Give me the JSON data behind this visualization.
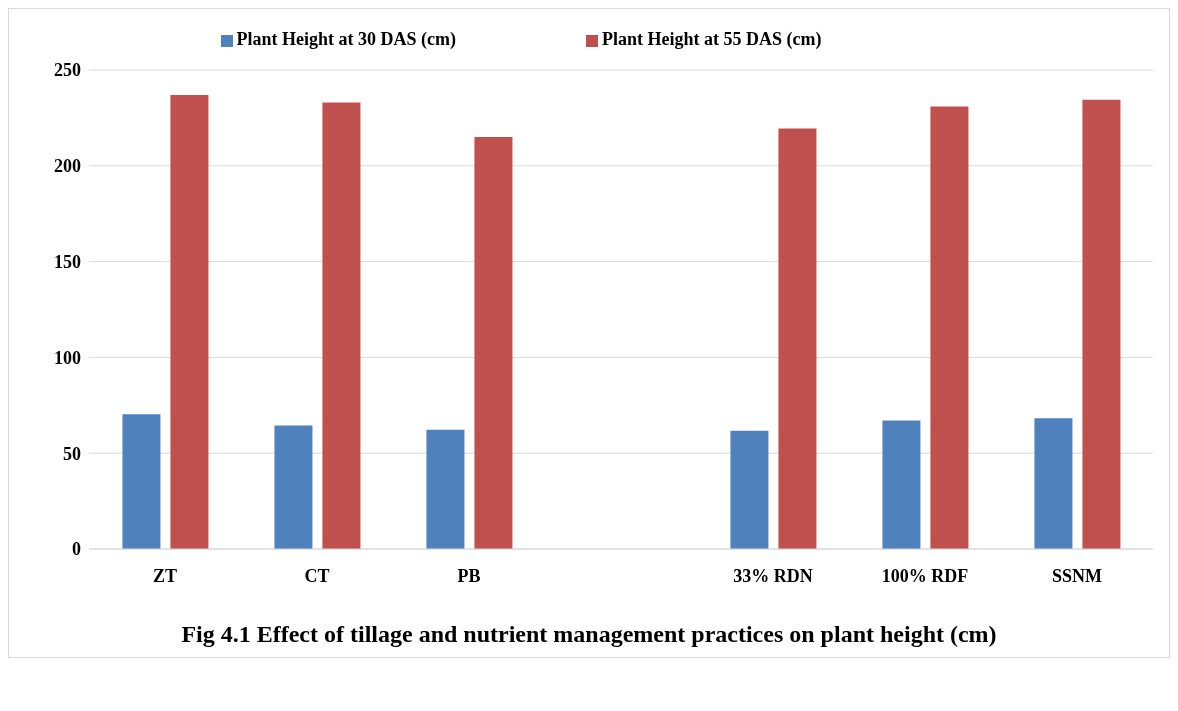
{
  "chart_data": {
    "type": "bar",
    "title": "Fig 4.1 Effect of tillage and nutrient management practices on plant height (cm)",
    "categories": [
      "ZT",
      "CT",
      "PB",
      null,
      "33% RDN",
      "100% RDF",
      "SSNM"
    ],
    "series": [
      {
        "name": "Plant Height at 30 DAS (cm)",
        "color": "#4f81bd",
        "values": [
          70.3,
          64.4,
          62.2,
          null,
          61.7,
          67.1,
          68.2
        ]
      },
      {
        "name": "Plant Height at 55 DAS (cm)",
        "color": "#c0504d",
        "values": [
          237,
          233,
          215,
          null,
          219.5,
          231,
          234.5
        ]
      }
    ],
    "ylim": [
      0,
      250
    ],
    "yticks": [
      0,
      50,
      100,
      150,
      200,
      250
    ],
    "grid": "y",
    "legend": "top"
  }
}
